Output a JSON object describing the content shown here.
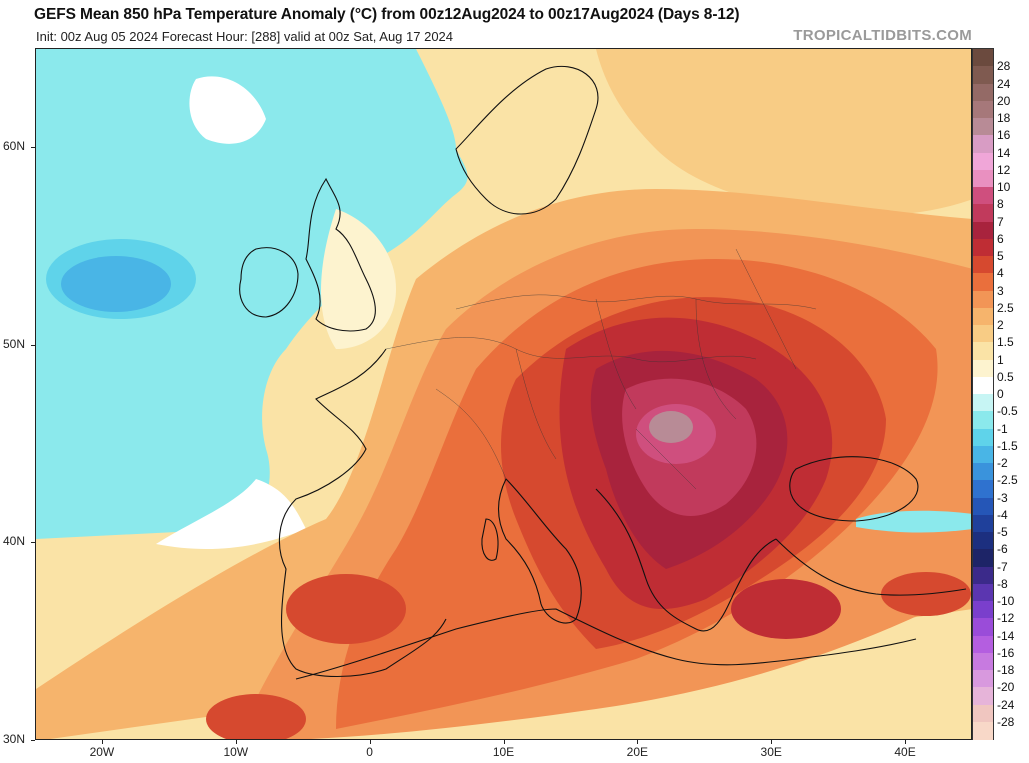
{
  "header": {
    "title": "GEFS Mean 850 hPa Temperature Anomaly (°C) from 00z12Aug2024 to 00z17Aug2024 (Days 8-12)",
    "subtitle": "Init: 00z Aug 05 2024   Forecast Hour: [288]   valid at 00z Sat, Aug 17 2024",
    "brand": "TROPICALTIDBITS.COM"
  },
  "map": {
    "lat_labels": [
      "60N",
      "50N",
      "40N",
      "30N"
    ],
    "lon_labels": [
      "20W",
      "10W",
      "0",
      "10E",
      "20E",
      "30E",
      "40E"
    ],
    "extent": {
      "lon_min": -25,
      "lon_max": 45,
      "lat_min": 30,
      "lat_max": 65
    },
    "features": [
      {
        "kind": "warm-core",
        "label": "max anomaly over Hungary / Balkans",
        "lon": 22,
        "lat": 46,
        "value": 8
      },
      {
        "kind": "cool-area",
        "label": "cool anomaly west of Ireland",
        "lon": -17,
        "lat": 53,
        "value": -2.5
      }
    ]
  },
  "colorbar": {
    "labels": [
      "28",
      "24",
      "20",
      "18",
      "16",
      "14",
      "12",
      "10",
      "8",
      "7",
      "6",
      "5",
      "4",
      "3",
      "2.5",
      "2",
      "1.5",
      "1",
      "0.5",
      "0",
      "-0.5",
      "-1",
      "-1.5",
      "-2",
      "-2.5",
      "-3",
      "-4",
      "-5",
      "-6",
      "-7",
      "-8",
      "-10",
      "-12",
      "-14",
      "-16",
      "-18",
      "-20",
      "-24",
      "-28"
    ],
    "colors": [
      "#6b4a3e",
      "#7f5a50",
      "#946a66",
      "#a6787a",
      "#b88b96",
      "#d89cc4",
      "#f0a6d8",
      "#e990c0",
      "#cf4f7e",
      "#c13a5c",
      "#a8233d",
      "#bf2d34",
      "#d6492f",
      "#ea6f3c",
      "#f29556",
      "#f6b46c",
      "#f8cc85",
      "#fae3a6",
      "#fdf3cf",
      "#ffffff",
      "#c7f5f4",
      "#8be9ec",
      "#5fd3ea",
      "#49b5e6",
      "#3a93dc",
      "#2f72cf",
      "#2556b7",
      "#1f409b",
      "#1c2f7f",
      "#1d2467",
      "#3b2a8a",
      "#5b36b0",
      "#7a3fcc",
      "#9a4cd9",
      "#b45ee0",
      "#c77ae0",
      "#d899de",
      "#e6b4d9",
      "#f0c6c0",
      "#f8d8c8"
    ]
  }
}
